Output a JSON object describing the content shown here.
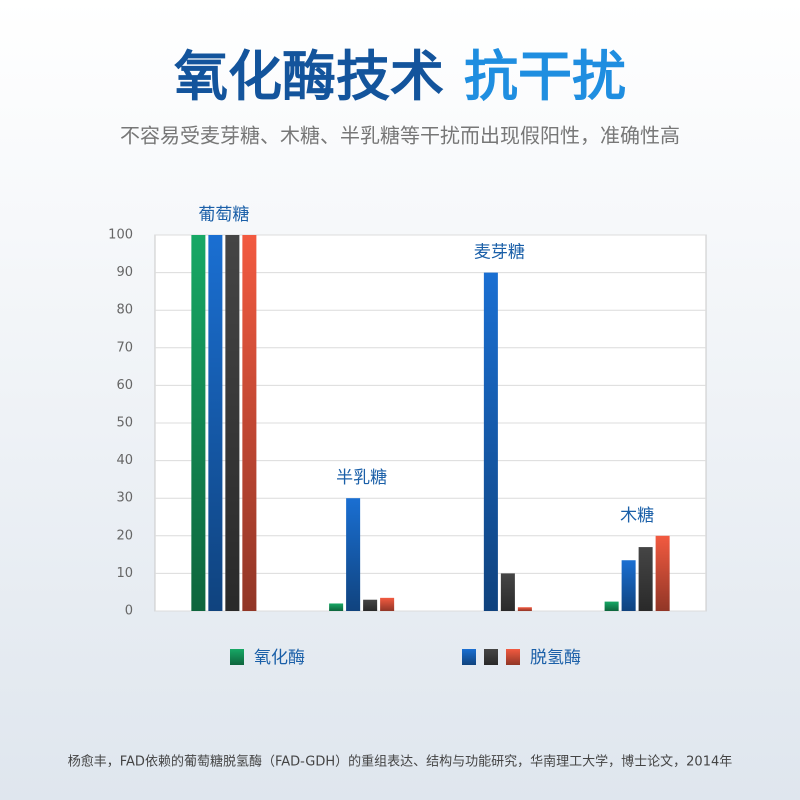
{
  "chart_data": {
    "type": "bar",
    "title": [
      "氧化酶技术",
      "抗干扰"
    ],
    "subtitle": "不容易受麦芽糖、木糖、半乳糖等干扰而出现假阳性，准确性高",
    "source": "杨愈丰，FAD依赖的葡萄糖脱氢酶（FAD-GDH）的重组表达、结构与功能研究，华南理工大学，博士论文，2014年",
    "categories": [
      "葡萄糖",
      "半乳糖",
      "麦芽糖",
      "木糖"
    ],
    "series": [
      {
        "name": "氧化酶",
        "color": "#17a865",
        "values": [
          100,
          2,
          0,
          2.5
        ]
      },
      {
        "name": "脱氢酶",
        "color": "#1a6fd2",
        "values": [
          100,
          30,
          90,
          13.5
        ]
      },
      {
        "name": "脱氢酶",
        "color": "#454545",
        "values": [
          100,
          3,
          10,
          17
        ]
      },
      {
        "name": "脱氢酶",
        "color": "#f25a40",
        "values": [
          100,
          3.5,
          1,
          20
        ]
      }
    ],
    "ylim": [
      0,
      100
    ],
    "yticks": [
      0,
      10,
      20,
      30,
      40,
      50,
      60,
      70,
      80,
      90,
      100
    ],
    "grid": true
  }
}
